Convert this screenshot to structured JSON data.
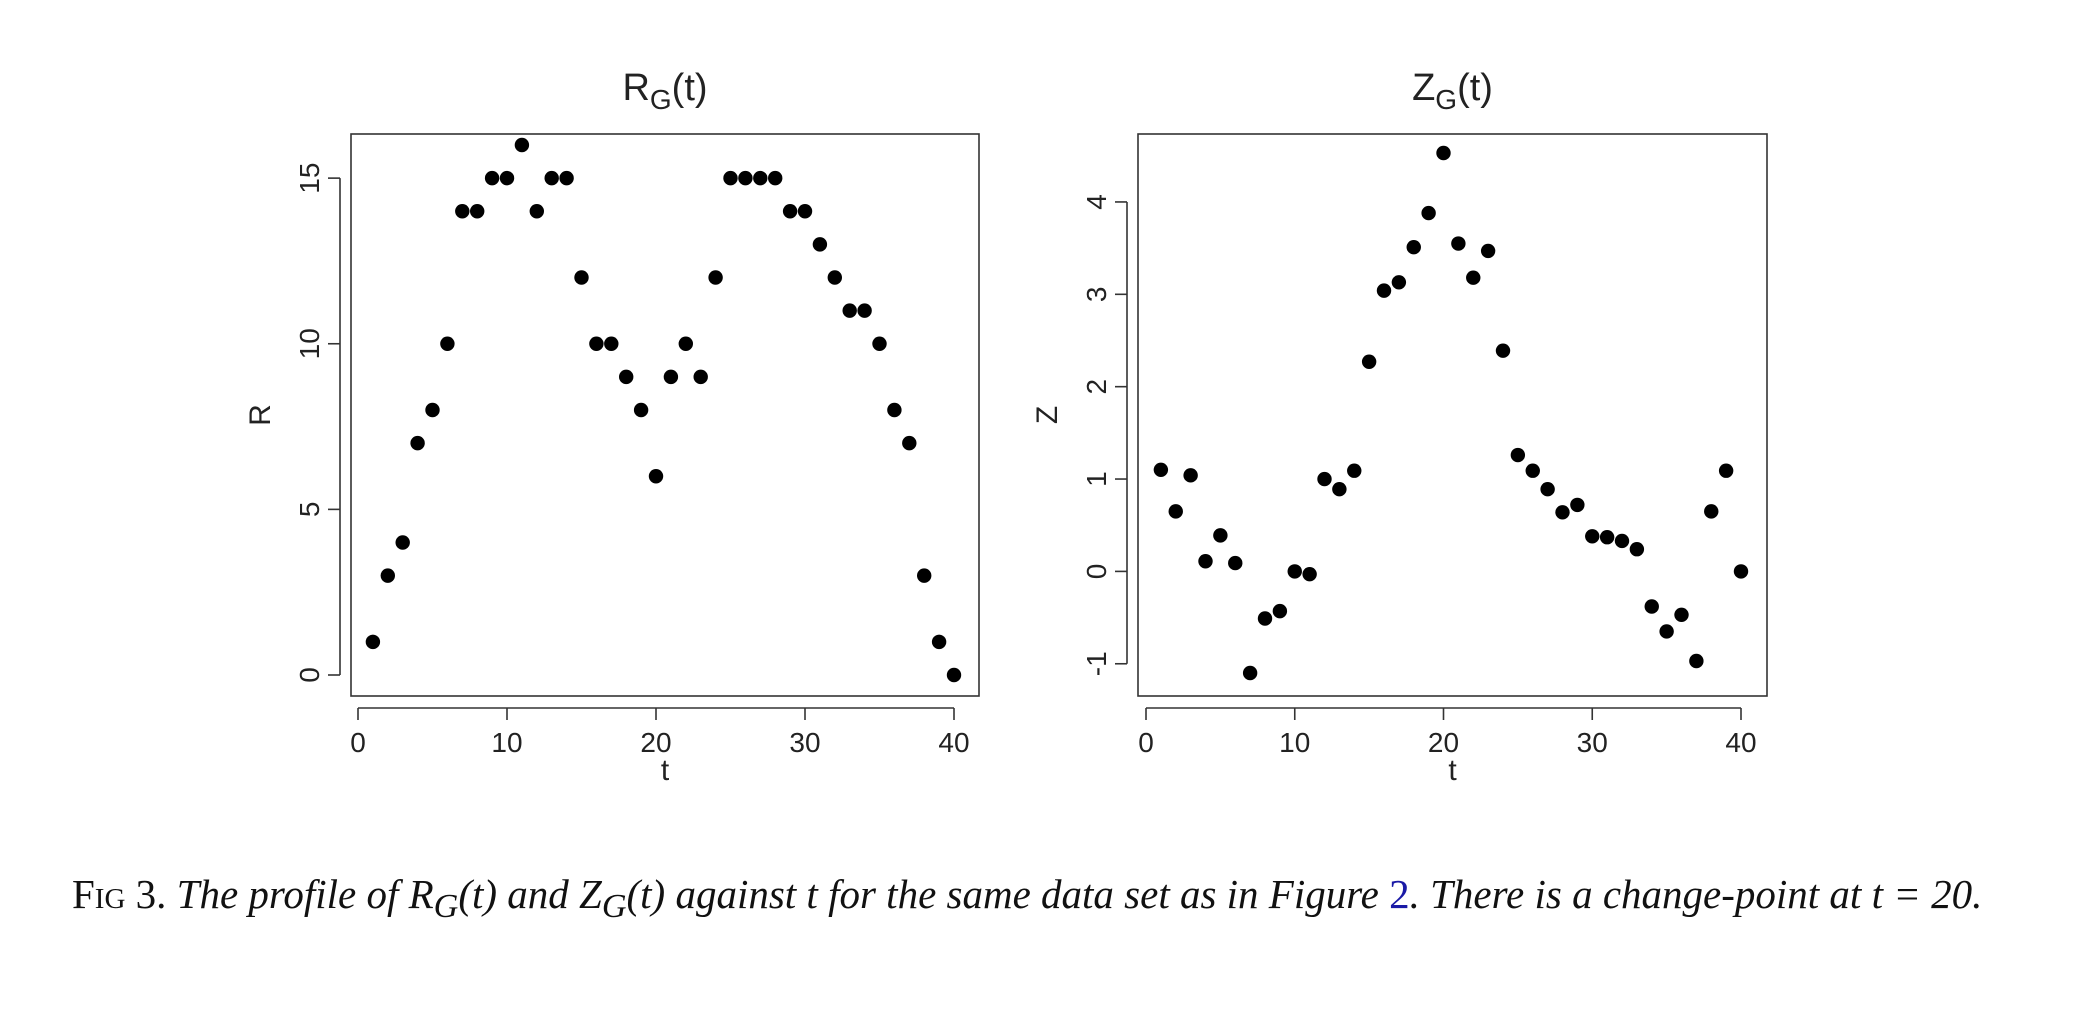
{
  "chart_data": [
    {
      "type": "scatter",
      "title": "R",
      "title_sub": "G",
      "title_suffix": "(t)",
      "xlabel": "t",
      "ylabel": "R",
      "xlim": [
        0,
        40
      ],
      "ylim": [
        0,
        16
      ],
      "xticks": [
        0,
        10,
        20,
        30,
        40
      ],
      "yticks": [
        0,
        5,
        10,
        15
      ],
      "grid": false,
      "x": [
        1,
        2,
        3,
        4,
        5,
        6,
        7,
        8,
        9,
        10,
        11,
        12,
        13,
        14,
        15,
        16,
        17,
        18,
        19,
        20,
        21,
        22,
        23,
        24,
        25,
        26,
        27,
        28,
        29,
        30,
        31,
        32,
        33,
        34,
        35,
        36,
        37,
        38,
        39,
        40
      ],
      "y": [
        1,
        3,
        4,
        7,
        8,
        10,
        14,
        14,
        15,
        15,
        16,
        14,
        15,
        15,
        12,
        10,
        10,
        9,
        8,
        6,
        9,
        10,
        9,
        12,
        15,
        15,
        15,
        15,
        14,
        14,
        13,
        12,
        11,
        11,
        10,
        8,
        7,
        3,
        1,
        0
      ]
    },
    {
      "type": "scatter",
      "title": "Z",
      "title_sub": "G",
      "title_suffix": "(t)",
      "xlabel": "t",
      "ylabel": "Z",
      "xlim": [
        0,
        40
      ],
      "ylim": [
        -1.1,
        4.53
      ],
      "xticks": [
        0,
        10,
        20,
        30,
        40
      ],
      "yticks": [
        -1,
        0,
        1,
        2,
        3,
        4
      ],
      "grid": false,
      "x": [
        1,
        2,
        3,
        4,
        5,
        6,
        7,
        8,
        9,
        10,
        11,
        12,
        13,
        14,
        15,
        16,
        17,
        18,
        19,
        20,
        21,
        22,
        23,
        24,
        25,
        26,
        27,
        28,
        29,
        30,
        31,
        32,
        33,
        34,
        35,
        36,
        37,
        38,
        39,
        40
      ],
      "y": [
        1.1,
        0.65,
        1.04,
        0.11,
        0.39,
        0.09,
        -1.1,
        -0.51,
        -0.43,
        0.0,
        -0.03,
        1.0,
        0.89,
        1.09,
        2.27,
        3.04,
        3.13,
        3.51,
        3.88,
        4.53,
        3.55,
        3.18,
        3.47,
        2.39,
        1.26,
        1.09,
        0.89,
        0.64,
        0.72,
        0.38,
        0.37,
        0.33,
        0.24,
        -0.38,
        -0.65,
        -0.47,
        -0.97,
        0.65,
        1.09,
        0.0
      ]
    }
  ],
  "caption": {
    "label": "Fig 3.",
    "text_before": "The profile of R",
    "sub1": "G",
    "mid1": "(t) and Z",
    "sub2": "G",
    "mid2": "(t) against t for the same data set as in Figure",
    "ref": "2",
    "text_after": ". There is a change-point at t = 20."
  }
}
